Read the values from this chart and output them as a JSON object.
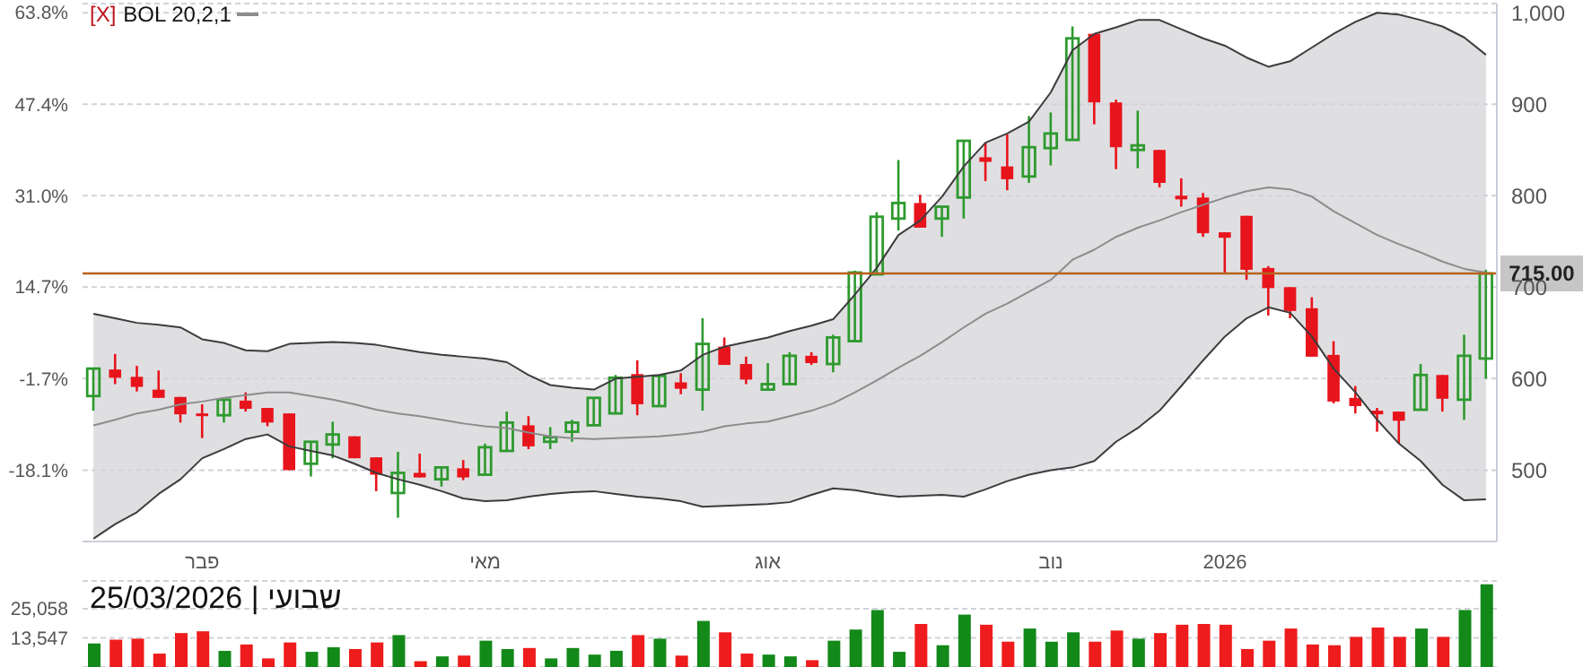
{
  "chart_data": [
    {
      "type": "candlestick",
      "categories": [
        null,
        null,
        null,
        null,
        null,
        "פבר",
        null,
        null,
        null,
        null,
        null,
        null,
        null,
        null,
        null,
        null,
        null,
        null,
        "מאי",
        null,
        null,
        null,
        null,
        null,
        null,
        null,
        null,
        null,
        null,
        null,
        null,
        "אוג",
        null,
        null,
        null,
        null,
        null,
        null,
        null,
        null,
        null,
        null,
        null,
        null,
        "נוב",
        null,
        null,
        null,
        null,
        null,
        null,
        null,
        "2026",
        null,
        null,
        null,
        null,
        null,
        null,
        null,
        null,
        null,
        null,
        null,
        null
      ],
      "ohlc": [
        [
          581,
          611,
          565,
          611
        ],
        [
          610,
          627,
          594,
          601
        ],
        [
          602,
          614,
          586,
          591
        ],
        [
          588,
          609,
          579,
          579
        ],
        [
          580,
          580,
          552,
          561
        ],
        [
          562,
          572,
          535,
          559
        ],
        [
          560,
          577,
          552,
          577
        ],
        [
          576,
          585,
          564,
          567
        ],
        [
          568,
          568,
          548,
          552
        ],
        [
          562,
          562,
          500,
          500
        ],
        [
          507,
          531,
          493,
          531
        ],
        [
          528,
          553,
          513,
          539
        ],
        [
          537,
          537,
          513,
          513
        ],
        [
          514,
          514,
          477,
          495
        ],
        [
          475,
          520,
          448,
          497
        ],
        [
          497,
          518,
          492,
          492
        ],
        [
          490,
          503,
          482,
          503
        ],
        [
          502,
          511,
          489,
          492
        ],
        [
          495,
          529,
          495,
          525
        ],
        [
          521,
          564,
          521,
          552
        ],
        [
          549,
          559,
          523,
          526
        ],
        [
          531,
          547,
          523,
          536
        ],
        [
          542,
          555,
          531,
          552
        ],
        [
          549,
          579,
          549,
          579
        ],
        [
          562,
          604,
          562,
          601
        ],
        [
          605,
          620,
          560,
          572
        ],
        [
          570,
          603,
          570,
          603
        ],
        [
          596,
          606,
          583,
          589
        ],
        [
          588,
          666,
          565,
          638
        ],
        [
          635,
          645,
          615,
          615
        ],
        [
          616,
          624,
          594,
          599
        ],
        [
          588,
          617,
          588,
          594
        ],
        [
          594,
          629,
          594,
          625
        ],
        [
          625,
          629,
          615,
          617
        ],
        [
          616,
          648,
          607,
          645
        ],
        [
          641,
          718,
          641,
          716
        ],
        [
          714,
          782,
          714,
          777
        ],
        [
          775,
          839,
          762,
          792
        ],
        [
          792,
          801,
          765,
          765
        ],
        [
          775,
          788,
          755,
          788
        ],
        [
          798,
          860,
          775,
          860
        ],
        [
          842,
          858,
          816,
          837
        ],
        [
          832,
          867,
          806,
          818
        ],
        [
          821,
          887,
          814,
          853
        ],
        [
          852,
          891,
          833,
          868
        ],
        [
          861,
          985,
          861,
          972
        ],
        [
          977,
          977,
          878,
          902
        ],
        [
          902,
          905,
          829,
          853
        ],
        [
          850,
          893,
          830,
          855
        ],
        [
          850,
          850,
          809,
          814
        ],
        [
          800,
          819,
          788,
          796
        ],
        [
          798,
          803,
          755,
          759
        ],
        [
          760,
          760,
          715,
          754
        ],
        [
          778,
          778,
          708,
          719
        ],
        [
          721,
          723,
          669,
          699
        ],
        [
          700,
          700,
          666,
          674
        ],
        [
          677,
          689,
          624,
          624
        ],
        [
          626,
          641,
          573,
          575
        ],
        [
          579,
          592,
          562,
          570
        ],
        [
          565,
          568,
          542,
          561
        ],
        [
          564,
          564,
          529,
          554
        ],
        [
          566,
          616,
          566,
          604
        ],
        [
          604,
          604,
          564,
          578
        ],
        [
          577,
          648,
          555,
          625
        ],
        [
          622,
          719,
          600,
          715
        ]
      ],
      "colors": [
        "#2e9a2e",
        "#e8141c",
        "#e8141c",
        "#e8141c",
        "#e8141c",
        "#e8141c",
        "#2e9a2e",
        "#e8141c",
        "#e8141c",
        "#e8141c",
        "#2e9a2e",
        "#2e9a2e",
        "#e8141c",
        "#e8141c",
        "#2e9a2e",
        "#e8141c",
        "#2e9a2e",
        "#e8141c",
        "#2e9a2e",
        "#2e9a2e",
        "#e8141c",
        "#2e9a2e",
        "#2e9a2e",
        "#2e9a2e",
        "#2e9a2e",
        "#e8141c",
        "#2e9a2e",
        "#e8141c",
        "#2e9a2e",
        "#e8141c",
        "#e8141c",
        "#2e9a2e",
        "#2e9a2e",
        "#e8141c",
        "#2e9a2e",
        "#2e9a2e",
        "#2e9a2e",
        "#2e9a2e",
        "#e8141c",
        "#2e9a2e",
        "#2e9a2e",
        "#e8141c",
        "#e8141c",
        "#2e9a2e",
        "#2e9a2e",
        "#2e9a2e",
        "#e8141c",
        "#e8141c",
        "#2e9a2e",
        "#e8141c",
        "#e8141c",
        "#e8141c",
        "#e8141c",
        "#e8141c",
        "#e8141c",
        "#e8141c",
        "#e8141c",
        "#e8141c",
        "#e8141c",
        "#e8141c",
        "#e8141c",
        "#2e9a2e",
        "#e8141c",
        "#2e9a2e",
        "#2e9a2e"
      ],
      "series": [
        {
          "name": "BOL 20,2,1",
          "type": "line",
          "color": "#8c8c8c",
          "values": [
            549,
            555,
            562,
            566,
            572,
            575,
            579,
            582,
            585,
            585,
            581,
            577,
            572,
            566,
            562,
            559,
            555,
            551,
            548,
            546,
            541,
            537,
            535,
            534,
            535,
            536,
            537,
            539,
            542,
            548,
            551,
            553,
            559,
            565,
            573,
            585,
            598,
            612,
            625,
            640,
            656,
            671,
            682,
            695,
            708,
            730,
            741,
            755,
            765,
            773,
            782,
            790,
            798,
            805,
            809,
            807,
            799,
            783,
            770,
            757,
            747,
            738,
            728,
            720,
            716
          ],
          "lower": [
            425,
            441,
            454,
            474,
            490,
            513,
            523,
            534,
            539,
            526,
            521,
            516,
            507,
            497,
            490,
            484,
            477,
            469,
            466,
            467,
            471,
            474,
            476,
            477,
            474,
            471,
            469,
            466,
            460,
            461,
            462,
            463,
            465,
            473,
            480,
            478,
            474,
            471,
            472,
            473,
            471,
            479,
            488,
            495,
            500,
            503,
            510,
            531,
            546,
            565,
            592,
            620,
            646,
            666,
            678,
            672,
            646,
            611,
            585,
            555,
            529,
            510,
            484,
            467,
            468
          ],
          "upper": [
            671,
            666,
            661,
            659,
            656,
            643,
            639,
            631,
            630,
            638,
            639,
            640,
            639,
            637,
            633,
            629,
            626,
            624,
            622,
            618,
            604,
            593,
            590,
            588,
            600,
            602,
            604,
            609,
            626,
            635,
            640,
            645,
            652,
            658,
            665,
            692,
            721,
            757,
            773,
            799,
            832,
            858,
            868,
            881,
            913,
            959,
            977,
            984,
            992,
            992,
            982,
            972,
            964,
            951,
            941,
            947,
            962,
            977,
            990,
            1000,
            998,
            992,
            985,
            973,
            954
          ]
        },
        {
          "type": "line",
          "color": "#3c3c3c",
          "values": [
            671,
            666,
            661,
            659,
            656,
            643,
            639,
            631,
            630,
            638,
            639,
            640,
            639,
            637,
            633,
            629,
            626,
            624,
            622,
            618,
            604,
            593,
            590,
            588,
            600,
            602,
            604,
            609,
            626,
            635,
            640,
            645,
            652,
            658,
            665,
            692,
            721,
            757,
            773,
            799,
            832,
            858,
            868,
            881,
            913,
            959,
            977,
            984,
            992,
            992,
            982,
            972,
            964,
            951,
            941,
            947,
            962,
            977,
            990,
            1000,
            998,
            992,
            985,
            973,
            954
          ]
        },
        {
          "type": "line",
          "color": "#3c3c3c",
          "values": [
            425,
            441,
            454,
            474,
            490,
            513,
            523,
            534,
            539,
            526,
            521,
            516,
            507,
            497,
            490,
            484,
            477,
            469,
            466,
            467,
            471,
            474,
            476,
            477,
            474,
            471,
            469,
            466,
            460,
            461,
            462,
            463,
            465,
            473,
            480,
            478,
            474,
            471,
            472,
            473,
            471,
            479,
            488,
            495,
            500,
            503,
            510,
            531,
            546,
            565,
            592,
            620,
            646,
            666,
            678,
            672,
            646,
            611,
            585,
            555,
            529,
            510,
            484,
            467,
            468
          ]
        }
      ],
      "ylim": [
        422,
        1010
      ],
      "yticks": [
        500,
        600,
        700,
        800,
        900,
        {
          "value": 1000,
          "label": "1,000"
        }
      ],
      "y2lim": [
        -30.9,
        65.4
      ],
      "y2ticks": [
        {
          "value": -18.1,
          "label": "-18.1%"
        },
        {
          "value": -1.7,
          "label": "-1.7%"
        },
        {
          "value": 14.7,
          "label": "14.7%"
        },
        {
          "value": 31.0,
          "label": "31.0%"
        },
        {
          "value": 47.4,
          "label": "47.4%"
        },
        {
          "value": 63.8,
          "label": "63.8%"
        }
      ],
      "ref_lines": [
        {
          "axis": "y",
          "value": 715,
          "label": "715.00",
          "color": "#b8621b"
        }
      ],
      "grid": "y",
      "legend": "top left",
      "annotations": [
        "[X]"
      ]
    },
    {
      "type": "bar",
      "categories": [
        null,
        null,
        null,
        null,
        null,
        null,
        null,
        null,
        null,
        null,
        null,
        null,
        null,
        null,
        null,
        null,
        null,
        null,
        null,
        null,
        null,
        null,
        null,
        null,
        null,
        null,
        null,
        null,
        null,
        null,
        null,
        null,
        null,
        null,
        null,
        null,
        null,
        null,
        null,
        null,
        null,
        null,
        null,
        null,
        null,
        null,
        null,
        null,
        null,
        null,
        null,
        null,
        null,
        null,
        null,
        null,
        null,
        null,
        null,
        null,
        null,
        null,
        null,
        null,
        null
      ],
      "values": [
        11300,
        12800,
        13200,
        7300,
        15400,
        16100,
        8400,
        10900,
        5400,
        11700,
        8000,
        9800,
        9100,
        11700,
        14600,
        4300,
        6200,
        6500,
        12400,
        9100,
        9500,
        5400,
        9500,
        6900,
        8400,
        14600,
        13200,
        6500,
        20200,
        15700,
        7300,
        6900,
        6200,
        4700,
        12400,
        16800,
        24500,
        8000,
        19000,
        10600,
        22700,
        18700,
        12000,
        17200,
        12000,
        15700,
        12000,
        16400,
        13200,
        15400,
        18700,
        19000,
        18700,
        9100,
        12400,
        17200,
        10900,
        10600,
        13900,
        17600,
        13900,
        17200,
        13900,
        24500,
        34700
      ],
      "colors": [
        "#13891a",
        "#ee1c1c",
        "#ee1c1c",
        "#ee1c1c",
        "#ee1c1c",
        "#ee1c1c",
        "#13891a",
        "#ee1c1c",
        "#ee1c1c",
        "#ee1c1c",
        "#13891a",
        "#13891a",
        "#ee1c1c",
        "#ee1c1c",
        "#13891a",
        "#ee1c1c",
        "#13891a",
        "#ee1c1c",
        "#13891a",
        "#13891a",
        "#ee1c1c",
        "#13891a",
        "#13891a",
        "#13891a",
        "#13891a",
        "#ee1c1c",
        "#13891a",
        "#ee1c1c",
        "#13891a",
        "#ee1c1c",
        "#ee1c1c",
        "#13891a",
        "#13891a",
        "#ee1c1c",
        "#13891a",
        "#13891a",
        "#13891a",
        "#13891a",
        "#ee1c1c",
        "#13891a",
        "#13891a",
        "#ee1c1c",
        "#ee1c1c",
        "#13891a",
        "#13891a",
        "#13891a",
        "#ee1c1c",
        "#ee1c1c",
        "#13891a",
        "#ee1c1c",
        "#ee1c1c",
        "#ee1c1c",
        "#ee1c1c",
        "#ee1c1c",
        "#ee1c1c",
        "#ee1c1c",
        "#ee1c1c",
        "#ee1c1c",
        "#ee1c1c",
        "#ee1c1c",
        "#ee1c1c",
        "#13891a",
        "#ee1c1c",
        "#13891a",
        "#13891a"
      ],
      "ylim": [
        2000,
        36000
      ],
      "yticks": [
        {
          "value": 13547,
          "label": "13,547"
        },
        {
          "value": 25058,
          "label": "25,058"
        }
      ],
      "grid": "y",
      "tick_labels": "y",
      "annotations": [
        "שבועי | 25/03/2026"
      ]
    }
  ]
}
